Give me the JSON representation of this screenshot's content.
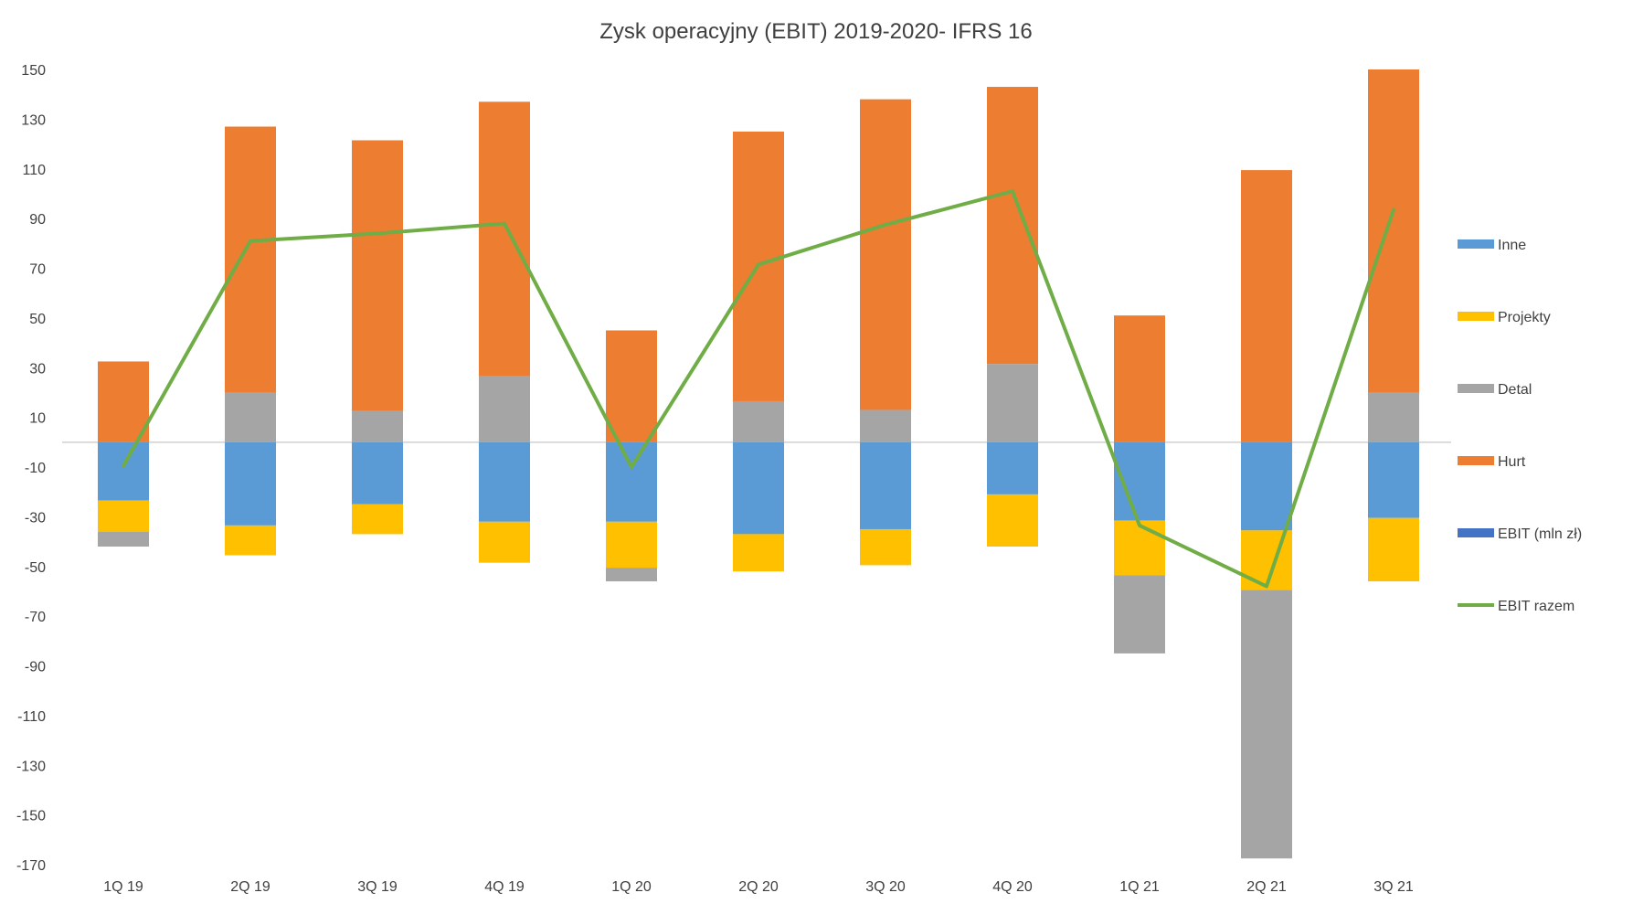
{
  "chart_data": {
    "type": "bar",
    "stacked": true,
    "title": "Zysk operacyjny (EBIT) 2019-2020- IFRS 16",
    "xlabel": "",
    "ylabel": "",
    "ylim": [
      -170,
      150
    ],
    "yticks": [
      150,
      130,
      110,
      90,
      70,
      50,
      30,
      10,
      -10,
      -30,
      -50,
      -70,
      -90,
      -110,
      -130,
      -150,
      -170
    ],
    "categories": [
      "1Q 19",
      "2Q 19",
      "3Q 19",
      "4Q 19",
      "1Q 20",
      "2Q 20",
      "3Q 20",
      "4Q 20",
      "1Q 21",
      "2Q 21",
      "3Q 21"
    ],
    "legend_position": "right",
    "series": [
      {
        "name": "Inne",
        "kind": "bar",
        "color": "#5B9BD5",
        "values": [
          -23.5,
          -33.5,
          -25,
          -32,
          -32,
          -37,
          -35,
          -21,
          -31.5,
          -35.5,
          -30.5
        ]
      },
      {
        "name": "Projekty",
        "kind": "bar",
        "color": "#FFC000",
        "values": [
          -12.5,
          -12,
          -12,
          -16.5,
          -18.5,
          -15,
          -14.5,
          -21,
          -22,
          -24,
          -25.5
        ]
      },
      {
        "name": "Detal",
        "kind": "bar",
        "color": "#A5A5A5",
        "values": [
          -6,
          20,
          12.5,
          26.5,
          -5.5,
          16.5,
          13,
          31.5,
          -31.5,
          -108,
          20
        ]
      },
      {
        "name": "Hurt",
        "kind": "bar",
        "color": "#ED7D31",
        "values": [
          32.5,
          107,
          109,
          110.5,
          45,
          108.5,
          125,
          111.5,
          51,
          109.5,
          130
        ]
      },
      {
        "name": "EBIT (mln zł)",
        "kind": "bar",
        "color": "#4472C4",
        "values": [
          0,
          0,
          0,
          0,
          0,
          0,
          0,
          0,
          0,
          0,
          0
        ]
      },
      {
        "name": "EBIT razem",
        "kind": "line",
        "color": "#70AD47",
        "values": [
          -9.5,
          81,
          84,
          88,
          -10,
          71.5,
          87.5,
          101,
          -33.5,
          -58,
          93.5
        ]
      }
    ]
  }
}
